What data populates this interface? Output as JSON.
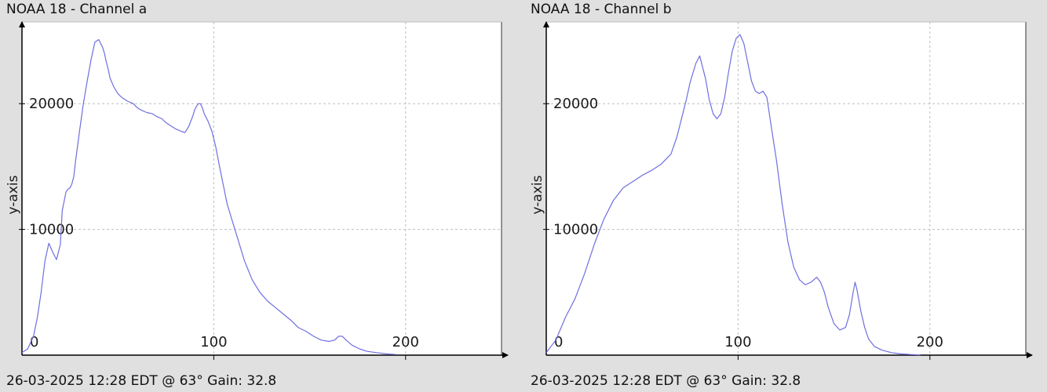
{
  "chart_data": [
    {
      "type": "line",
      "title": "NOAA 18 - Channel a",
      "footer": "26-03-2025 12:28 EDT @ 63° Gain: 32.8",
      "ylabel": "y-axis",
      "xlabel": "",
      "xlim": [
        0,
        250
      ],
      "ylim": [
        0,
        26500
      ],
      "xticks": [
        0,
        100,
        200
      ],
      "yticks": [
        10000,
        20000
      ],
      "grid": true,
      "line_color": "#6f6fe0",
      "series": [
        {
          "x": [
            0,
            3,
            6,
            8,
            10,
            12,
            14,
            16,
            18,
            20,
            21,
            23,
            24,
            25,
            26,
            27,
            28,
            30,
            32,
            34,
            36,
            38,
            40,
            42,
            43,
            44,
            45,
            46,
            48,
            50,
            52,
            55,
            58,
            60,
            62,
            65,
            68,
            70,
            73,
            75,
            78,
            80,
            83,
            85,
            87,
            89,
            90,
            91,
            92,
            93,
            94,
            95,
            97,
            99,
            101,
            103,
            105,
            107,
            110,
            113,
            116,
            120,
            124,
            128,
            132,
            136,
            140,
            144,
            148,
            152,
            156,
            160,
            163,
            165,
            167,
            169,
            172,
            176,
            180,
            185,
            190,
            195
          ],
          "y": [
            200,
            500,
            1500,
            3000,
            5000,
            7500,
            8900,
            8200,
            7600,
            8800,
            11500,
            13000,
            13200,
            13300,
            13600,
            14200,
            15500,
            17800,
            20000,
            21800,
            23500,
            24900,
            25100,
            24500,
            24000,
            23300,
            22700,
            22000,
            21300,
            20800,
            20500,
            20200,
            20000,
            19700,
            19500,
            19300,
            19200,
            19000,
            18800,
            18500,
            18200,
            18000,
            17800,
            17700,
            18200,
            19000,
            19500,
            19800,
            20000,
            20000,
            19700,
            19200,
            18600,
            17800,
            16600,
            15000,
            13500,
            12000,
            10500,
            9000,
            7500,
            6000,
            5000,
            4300,
            3800,
            3300,
            2800,
            2200,
            1900,
            1500,
            1200,
            1100,
            1200,
            1500,
            1500,
            1200,
            800,
            500,
            300,
            200,
            100,
            50
          ]
        }
      ]
    },
    {
      "type": "line",
      "title": "NOAA 18 - Channel b",
      "footer": "26-03-2025 12:28 EDT @ 63° Gain: 32.8",
      "ylabel": "y-axis",
      "xlabel": "",
      "xlim": [
        0,
        250
      ],
      "ylim": [
        0,
        26500
      ],
      "xticks": [
        0,
        100,
        200
      ],
      "yticks": [
        10000,
        20000
      ],
      "grid": true,
      "line_color": "#6f6fe0",
      "series": [
        {
          "x": [
            0,
            5,
            10,
            15,
            20,
            25,
            30,
            35,
            40,
            42,
            45,
            50,
            55,
            60,
            65,
            68,
            70,
            73,
            75,
            78,
            80,
            83,
            85,
            87,
            89,
            91,
            93,
            95,
            97,
            99,
            101,
            103,
            105,
            107,
            109,
            111,
            113,
            115,
            117,
            120,
            123,
            126,
            129,
            132,
            135,
            138,
            141,
            143,
            145,
            147,
            150,
            153,
            156,
            158,
            160,
            161,
            162,
            164,
            166,
            168,
            171,
            175,
            180,
            185,
            190,
            195
          ],
          "y": [
            200,
            1200,
            3000,
            4500,
            6500,
            8800,
            10800,
            12300,
            13300,
            13500,
            13800,
            14300,
            14700,
            15200,
            16000,
            17300,
            18500,
            20300,
            21700,
            23200,
            23800,
            22000,
            20300,
            19200,
            18800,
            19200,
            20500,
            22500,
            24200,
            25200,
            25500,
            24800,
            23300,
            21800,
            21000,
            20800,
            21000,
            20500,
            18500,
            15500,
            12000,
            9000,
            7000,
            6000,
            5600,
            5800,
            6200,
            5800,
            5000,
            3800,
            2500,
            2000,
            2200,
            3200,
            5000,
            5800,
            5200,
            3500,
            2200,
            1300,
            700,
            400,
            200,
            100,
            50,
            20
          ]
        }
      ]
    }
  ]
}
